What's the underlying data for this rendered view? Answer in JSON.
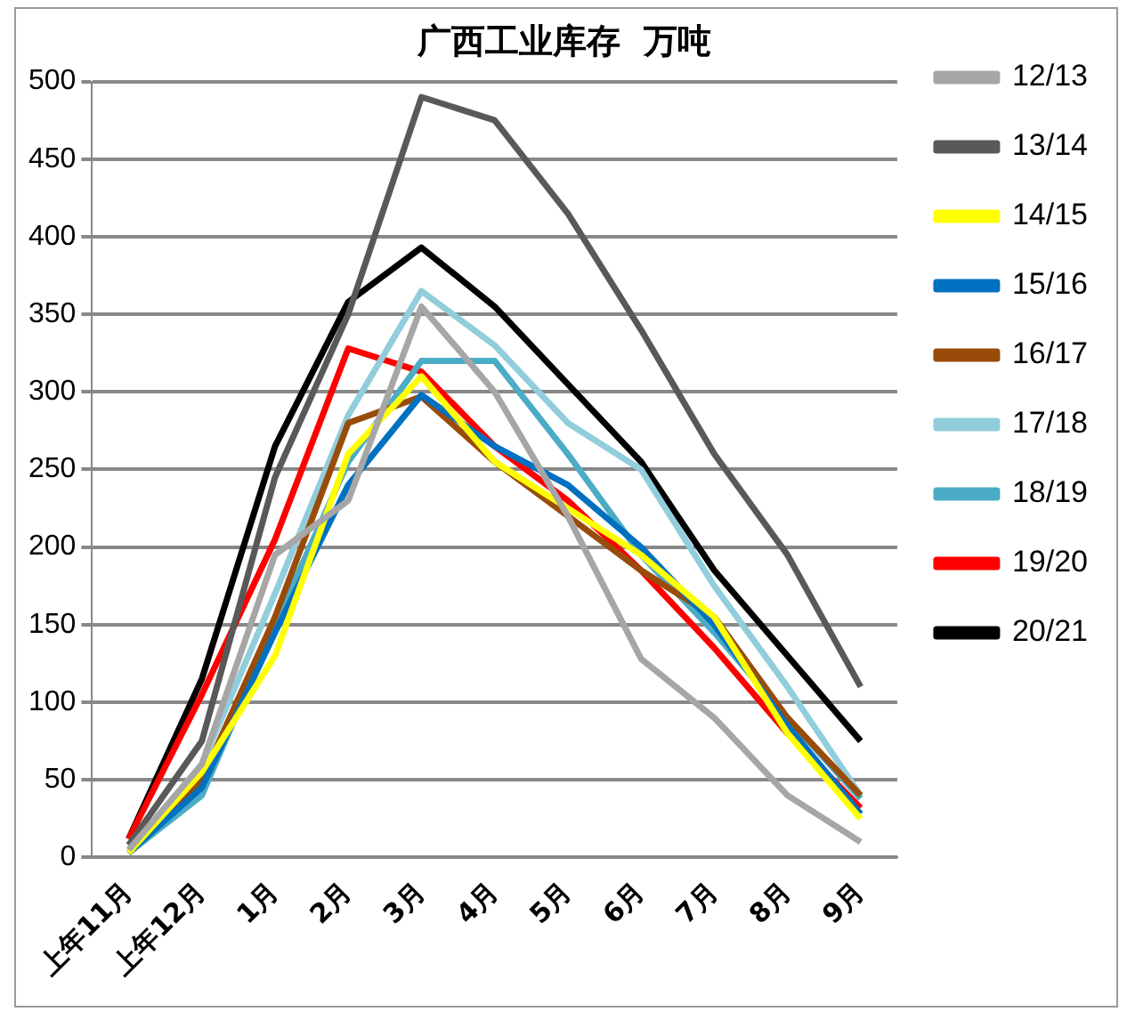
{
  "chart_data": {
    "type": "line",
    "title": "广西工业库存  万吨",
    "categories": [
      "上年11月",
      "上年12月",
      "1月",
      "2月",
      "3月",
      "4月",
      "5月",
      "6月",
      "7月",
      "8月",
      "9月"
    ],
    "ylim": [
      0,
      500
    ],
    "yticks": [
      0,
      50,
      100,
      150,
      200,
      250,
      300,
      350,
      400,
      450,
      500
    ],
    "grid": "y",
    "legend": "right",
    "marker": "none",
    "line_style": "solid",
    "series": [
      {
        "name": "12/13",
        "color": "#a6a6a6",
        "values": [
          5,
          60,
          195,
          230,
          355,
          300,
          220,
          128,
          90,
          40,
          10
        ]
      },
      {
        "name": "13/14",
        "color": "#595959",
        "values": [
          8,
          75,
          245,
          350,
          490,
          475,
          415,
          340,
          260,
          195,
          110
        ]
      },
      {
        "name": "14/15",
        "color": "#ffff00",
        "values": [
          3,
          55,
          130,
          260,
          310,
          255,
          225,
          195,
          155,
          80,
          25
        ]
      },
      {
        "name": "15/16",
        "color": "#0070c0",
        "values": [
          3,
          45,
          145,
          240,
          298,
          265,
          240,
          200,
          150,
          85,
          28
        ]
      },
      {
        "name": "16/17",
        "color": "#994c0a",
        "values": [
          3,
          50,
          155,
          280,
          297,
          255,
          220,
          185,
          155,
          90,
          40
        ]
      },
      {
        "name": "17/18",
        "color": "#92cddc",
        "values": [
          3,
          60,
          170,
          285,
          365,
          330,
          280,
          250,
          175,
          110,
          40
        ]
      },
      {
        "name": "18/19",
        "color": "#4bacc6",
        "values": [
          3,
          40,
          150,
          255,
          320,
          320,
          260,
          195,
          145,
          90,
          38
        ]
      },
      {
        "name": "19/20",
        "color": "#ff0000",
        "values": [
          12,
          105,
          205,
          328,
          313,
          265,
          230,
          185,
          135,
          80,
          32
        ]
      },
      {
        "name": "20/21",
        "color": "#000000",
        "values": [
          12,
          115,
          265,
          358,
          393,
          355,
          305,
          255,
          185,
          130,
          75
        ]
      }
    ]
  }
}
